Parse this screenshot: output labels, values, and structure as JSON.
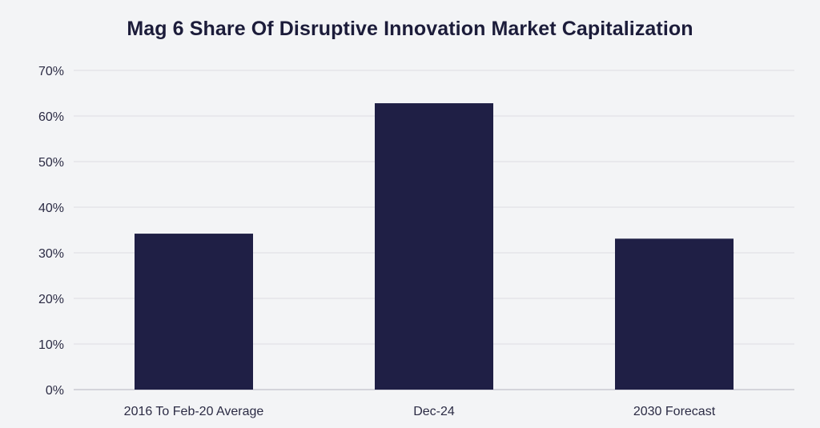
{
  "chart_data": {
    "type": "bar",
    "title": "Mag 6 Share Of Disruptive Innovation Market Capitalization",
    "categories": [
      "2016 To Feb-20 Average",
      "Dec-24",
      "2030 Forecast"
    ],
    "values": [
      34.2,
      62.8,
      33.1
    ],
    "y_ticks": [
      "0%",
      "10%",
      "20%",
      "30%",
      "40%",
      "50%",
      "60%",
      "70%"
    ],
    "ylim": [
      0,
      70
    ],
    "y_unit": "%",
    "xlabel": "",
    "ylabel": "",
    "grid": true,
    "legend": "none",
    "bar_color": "#1f1f45",
    "grid_color": "#dcdde3",
    "axis_color": "#c9cad2"
  }
}
